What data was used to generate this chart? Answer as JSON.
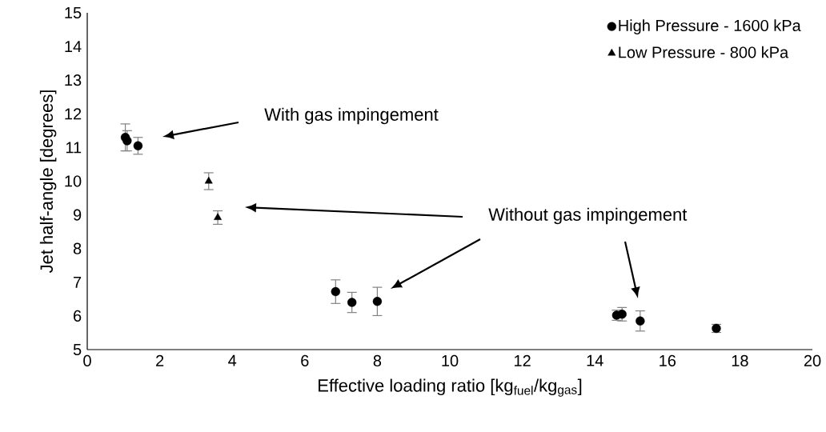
{
  "chart_data": {
    "type": "scatter",
    "xlabel": "Effective loading ratio [kg$_{fuel}$/kg$_{gas}$]",
    "ylabel": "Jet half-angle [degrees]",
    "xlim": [
      0,
      20
    ],
    "xticks": [
      0,
      2,
      4,
      6,
      8,
      10,
      12,
      14,
      16,
      18,
      20
    ],
    "ylim": [
      5,
      15
    ],
    "yticks": [
      5,
      6,
      7,
      8,
      9,
      10,
      11,
      12,
      13,
      14,
      15
    ],
    "grid": false,
    "legend": "top right",
    "series": [
      {
        "name": "High Pressure - 1600 kPa",
        "color": "#000000",
        "marker": "circle",
        "x": [
          1.05,
          1.1,
          1.4,
          6.85,
          7.3,
          8.0,
          14.6,
          14.75,
          15.25,
          17.35
        ],
        "values": [
          11.3,
          11.2,
          11.05,
          6.72,
          6.4,
          6.43,
          6.02,
          6.05,
          5.85,
          5.63
        ],
        "errors": [
          0.4,
          0.3,
          0.25,
          0.35,
          0.3,
          0.42,
          0.15,
          0.2,
          0.3,
          0.12
        ]
      },
      {
        "name": "Low Pressure - 800 kPa",
        "color": "#000000",
        "marker": "triangle",
        "x": [
          3.35,
          3.6
        ],
        "values": [
          10.0,
          8.92
        ],
        "errors": [
          0.25,
          0.2
        ]
      }
    ],
    "annotations": [
      "With gas impingement",
      "Without gas impingement"
    ]
  }
}
